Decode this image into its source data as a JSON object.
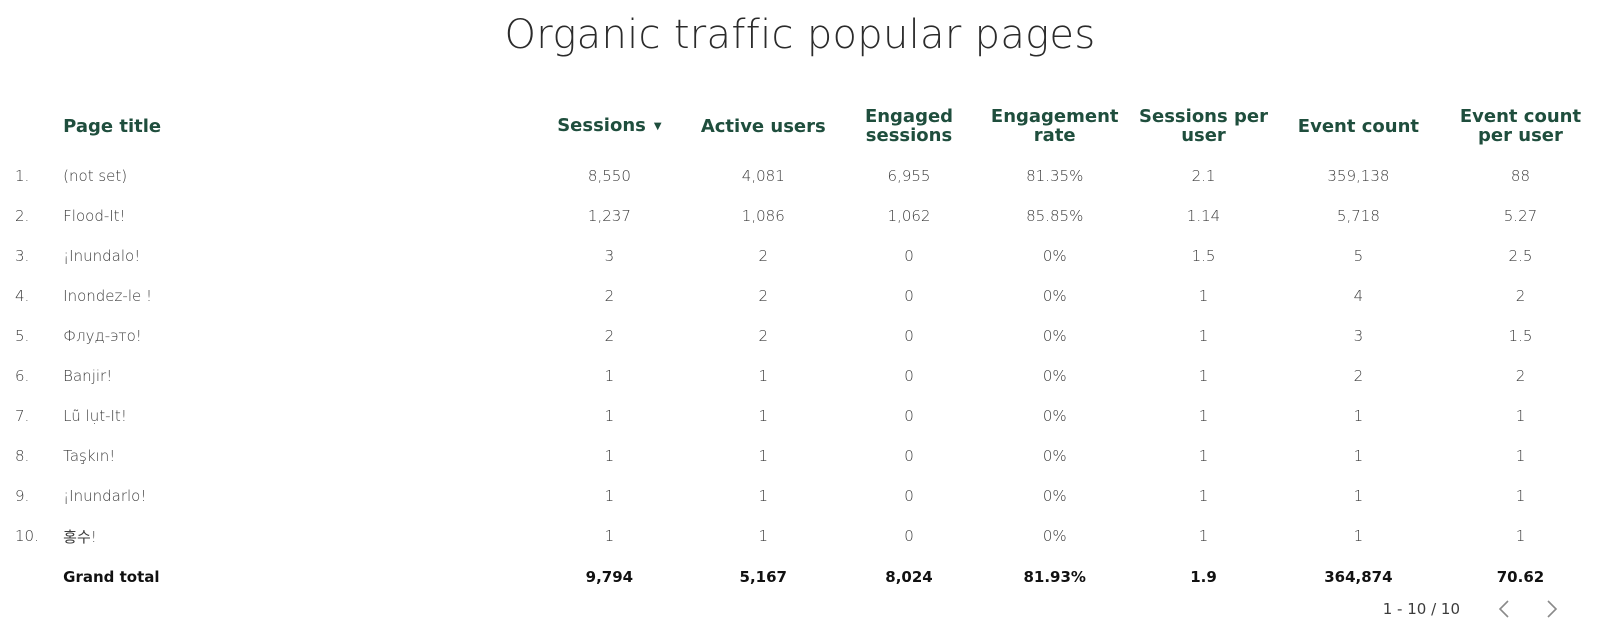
{
  "title": "Organic traffic popular pages",
  "columns": {
    "page_title": "Page title",
    "sessions": "Sessions",
    "active_users": "Active users",
    "engaged_sessions_1": "Engaged",
    "engaged_sessions_2": "sessions",
    "engagement_rate_1": "Engagement",
    "engagement_rate_2": "rate",
    "sessions_per_user_1": "Sessions per",
    "sessions_per_user_2": "user",
    "event_count": "Event count",
    "event_count_per_user_1": "Event count",
    "event_count_per_user_2": "per user"
  },
  "sort_icon": "sort-descending-icon",
  "rows": [
    {
      "idx": "1.",
      "page": "(not set)",
      "sessions": "8,550",
      "users": "4,081",
      "engaged": "6,955",
      "rate": "81.35%",
      "spu": "2.1",
      "events": "359,138",
      "epu": "88"
    },
    {
      "idx": "2.",
      "page": "Flood-It!",
      "sessions": "1,237",
      "users": "1,086",
      "engaged": "1,062",
      "rate": "85.85%",
      "spu": "1.14",
      "events": "5,718",
      "epu": "5.27"
    },
    {
      "idx": "3.",
      "page": "¡Inundalo!",
      "sessions": "3",
      "users": "2",
      "engaged": "0",
      "rate": "0%",
      "spu": "1.5",
      "events": "5",
      "epu": "2.5"
    },
    {
      "idx": "4.",
      "page": "Inondez-le !",
      "sessions": "2",
      "users": "2",
      "engaged": "0",
      "rate": "0%",
      "spu": "1",
      "events": "4",
      "epu": "2"
    },
    {
      "idx": "5.",
      "page": "Флуд-это!",
      "sessions": "2",
      "users": "2",
      "engaged": "0",
      "rate": "0%",
      "spu": "1",
      "events": "3",
      "epu": "1.5"
    },
    {
      "idx": "6.",
      "page": "Banjir!",
      "sessions": "1",
      "users": "1",
      "engaged": "0",
      "rate": "0%",
      "spu": "1",
      "events": "2",
      "epu": "2"
    },
    {
      "idx": "7.",
      "page": "Lũ lụt-It!",
      "sessions": "1",
      "users": "1",
      "engaged": "0",
      "rate": "0%",
      "spu": "1",
      "events": "1",
      "epu": "1"
    },
    {
      "idx": "8.",
      "page": "Taşkın!",
      "sessions": "1",
      "users": "1",
      "engaged": "0",
      "rate": "0%",
      "spu": "1",
      "events": "1",
      "epu": "1"
    },
    {
      "idx": "9.",
      "page": "¡Inundarlo!",
      "sessions": "1",
      "users": "1",
      "engaged": "0",
      "rate": "0%",
      "spu": "1",
      "events": "1",
      "epu": "1"
    },
    {
      "idx": "10.",
      "page": "홍수!",
      "sessions": "1",
      "users": "1",
      "engaged": "0",
      "rate": "0%",
      "spu": "1",
      "events": "1",
      "epu": "1"
    }
  ],
  "total": {
    "label": "Grand total",
    "sessions": "9,794",
    "users": "5,167",
    "engaged": "8,024",
    "rate": "81.93%",
    "spu": "1.9",
    "events": "364,874",
    "epu": "70.62"
  },
  "pager": {
    "text": "1 - 10 / 10",
    "prev_icon": "chevron-left-icon",
    "next_icon": "chevron-right-icon"
  }
}
